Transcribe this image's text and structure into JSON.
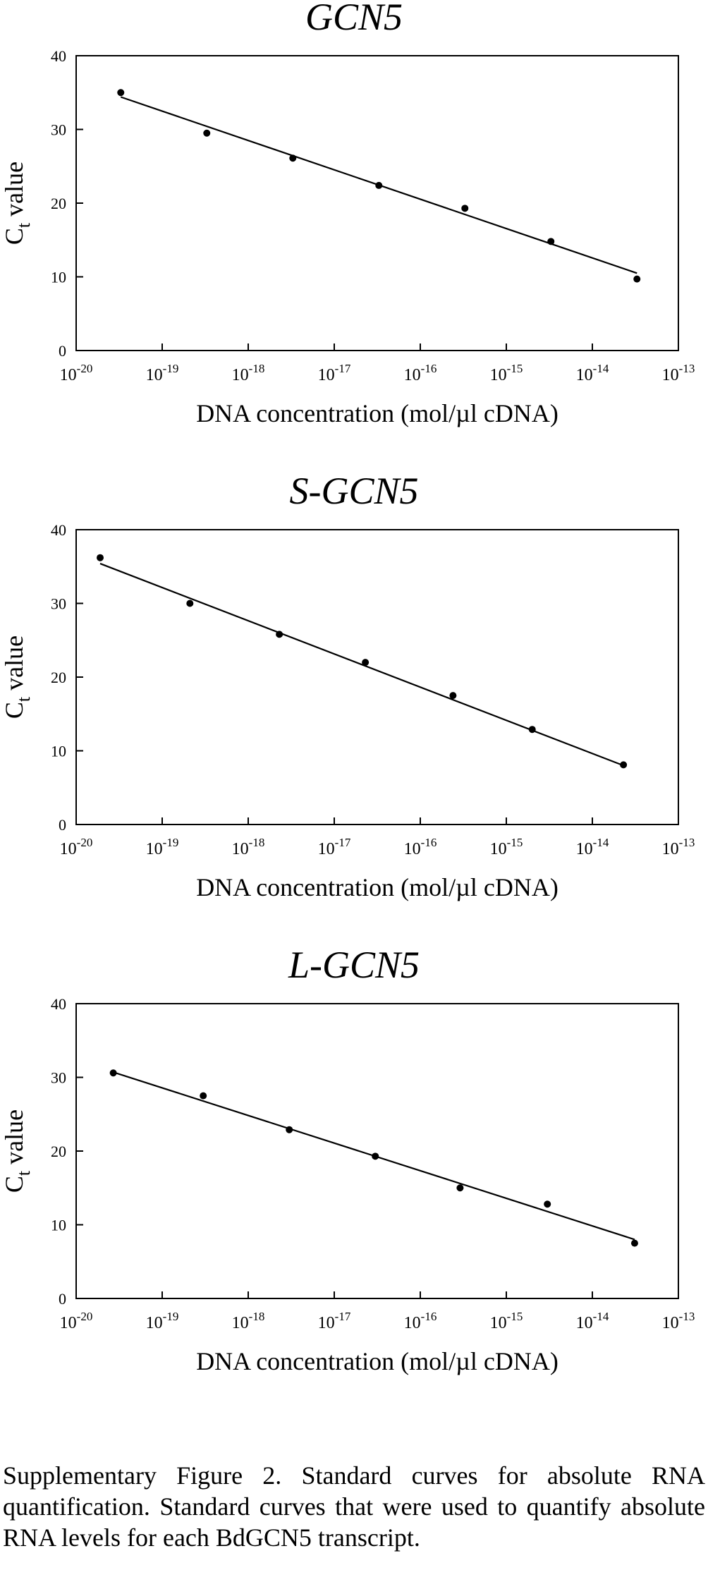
{
  "chart_data": [
    {
      "type": "scatter",
      "title": "GCN5",
      "xlabel": "DNA concentration (mol/µl cDNA)",
      "ylabel_main": "C",
      "ylabel_sub": "t",
      "ylabel_rest": " value",
      "x_scale": "log",
      "xlim": [
        1e-20,
        1e-13
      ],
      "ylim": [
        0,
        40
      ],
      "yticks": [
        "0",
        "10",
        "20",
        "30",
        "40"
      ],
      "xticks": [
        {
          "base": "10",
          "exp": "-20"
        },
        {
          "base": "10",
          "exp": "-19"
        },
        {
          "base": "10",
          "exp": "-18"
        },
        {
          "base": "10",
          "exp": "-17"
        },
        {
          "base": "10",
          "exp": "-16"
        },
        {
          "base": "10",
          "exp": "-15"
        },
        {
          "base": "10",
          "exp": "-14"
        },
        {
          "base": "10",
          "exp": "-13"
        }
      ],
      "grid": false,
      "points": [
        {
          "x": 3.3e-20,
          "y": 35.0
        },
        {
          "x": 3.3e-19,
          "y": 29.5
        },
        {
          "x": 3.3e-18,
          "y": 26.1
        },
        {
          "x": 3.3e-17,
          "y": 22.4
        },
        {
          "x": 3.3e-16,
          "y": 19.3
        },
        {
          "x": 3.3e-15,
          "y": 14.8
        },
        {
          "x": 3.3e-14,
          "y": 9.7
        }
      ],
      "fit": [
        {
          "x": 3.3e-20,
          "y": 34.4
        },
        {
          "x": 3.3e-14,
          "y": 10.5
        }
      ]
    },
    {
      "type": "scatter",
      "title": "S-GCN5",
      "xlabel": "DNA concentration (mol/µl cDNA)",
      "ylabel_main": "C",
      "ylabel_sub": "t",
      "ylabel_rest": " value",
      "x_scale": "log",
      "xlim": [
        1e-20,
        1e-13
      ],
      "ylim": [
        0,
        40
      ],
      "yticks": [
        "0",
        "10",
        "20",
        "30",
        "40"
      ],
      "xticks": [
        {
          "base": "10",
          "exp": "-20"
        },
        {
          "base": "10",
          "exp": "-19"
        },
        {
          "base": "10",
          "exp": "-18"
        },
        {
          "base": "10",
          "exp": "-17"
        },
        {
          "base": "10",
          "exp": "-16"
        },
        {
          "base": "10",
          "exp": "-15"
        },
        {
          "base": "10",
          "exp": "-14"
        },
        {
          "base": "10",
          "exp": "-13"
        }
      ],
      "grid": false,
      "points": [
        {
          "x": 1.9e-20,
          "y": 36.2
        },
        {
          "x": 2.1e-19,
          "y": 30.0
        },
        {
          "x": 2.3e-18,
          "y": 25.8
        },
        {
          "x": 2.3e-17,
          "y": 22.0
        },
        {
          "x": 2.4e-16,
          "y": 17.5
        },
        {
          "x": 2e-15,
          "y": 12.9
        },
        {
          "x": 2.3e-14,
          "y": 8.1
        }
      ],
      "fit": [
        {
          "x": 1.9e-20,
          "y": 35.4
        },
        {
          "x": 2.3e-14,
          "y": 8.0
        }
      ]
    },
    {
      "type": "scatter",
      "title": "L-GCN5",
      "xlabel": "DNA concentration (mol/µl cDNA)",
      "ylabel_main": "C",
      "ylabel_sub": "t",
      "ylabel_rest": " value",
      "x_scale": "log",
      "xlim": [
        1e-20,
        1e-13
      ],
      "ylim": [
        0,
        40
      ],
      "yticks": [
        "0",
        "10",
        "20",
        "30",
        "40"
      ],
      "xticks": [
        {
          "base": "10",
          "exp": "-20"
        },
        {
          "base": "10",
          "exp": "-19"
        },
        {
          "base": "10",
          "exp": "-18"
        },
        {
          "base": "10",
          "exp": "-17"
        },
        {
          "base": "10",
          "exp": "-16"
        },
        {
          "base": "10",
          "exp": "-15"
        },
        {
          "base": "10",
          "exp": "-14"
        },
        {
          "base": "10",
          "exp": "-13"
        }
      ],
      "grid": false,
      "points": [
        {
          "x": 2.7e-20,
          "y": 30.6
        },
        {
          "x": 3e-19,
          "y": 27.5
        },
        {
          "x": 3e-18,
          "y": 22.9
        },
        {
          "x": 3e-17,
          "y": 19.3
        },
        {
          "x": 2.9e-16,
          "y": 15.0
        },
        {
          "x": 3e-15,
          "y": 12.8
        },
        {
          "x": 3.1e-14,
          "y": 7.5
        }
      ],
      "fit": [
        {
          "x": 2.7e-20,
          "y": 30.7
        },
        {
          "x": 3.1e-14,
          "y": 8.0
        }
      ]
    }
  ],
  "caption": "Supplementary Figure 2. Standard curves for absolute RNA quantification. Standard curves that were used to quantify absolute RNA levels for each BdGCN5 transcript."
}
